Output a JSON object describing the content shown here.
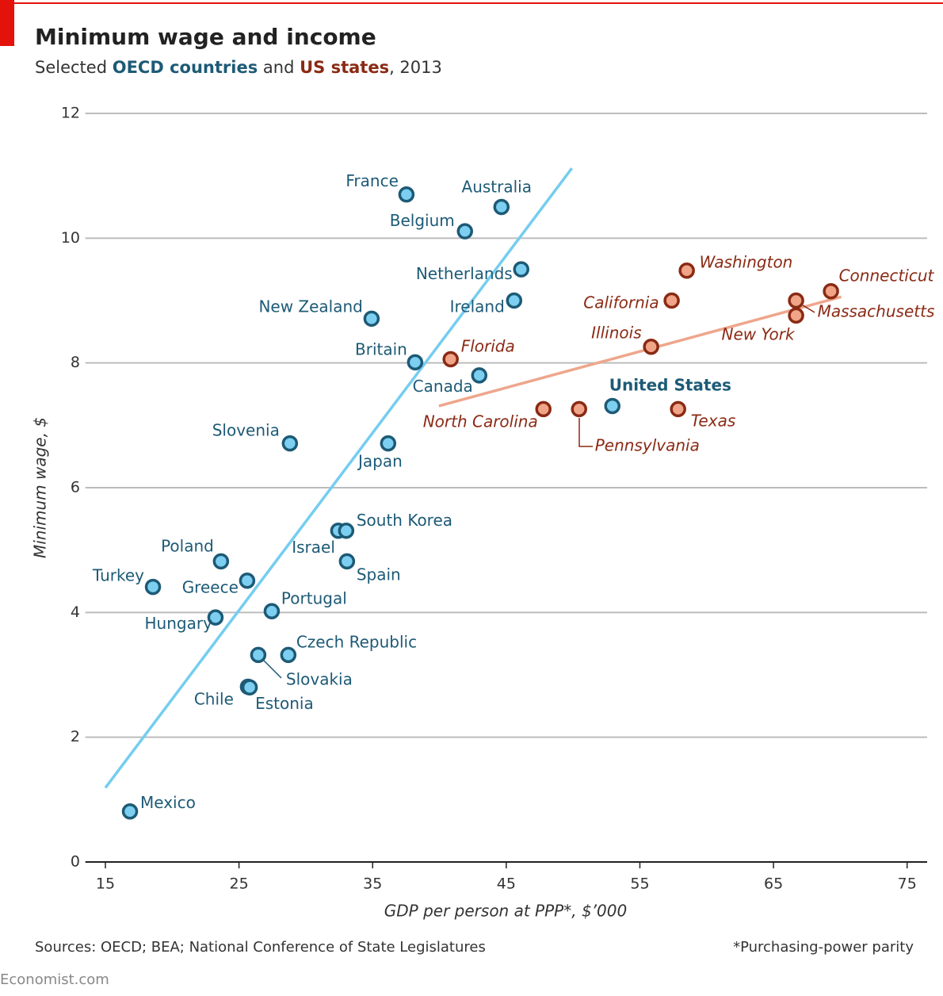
{
  "chart_data": {
    "type": "scatter",
    "title": "Minimum wage and income",
    "subtitle_parts": [
      "Selected",
      "and",
      ", 2013"
    ],
    "x_label": "GDP per person at PPP*, $’000",
    "y_label": "Minimum wage, $",
    "source": "Sources: OECD; BEA; National Conference of State Legislatures",
    "footnote": "*Purchasing-power parity",
    "brand": "Economist.com",
    "xlim": [
      13.5,
      76.5
    ],
    "ylim": [
      0,
      12
    ],
    "xticks": [
      15,
      25,
      35,
      45,
      55,
      65,
      75
    ],
    "yticks": [
      0,
      2,
      4,
      6,
      8,
      10,
      12
    ],
    "grid": true,
    "series": [
      {
        "name": "OECD countries",
        "color": "#7ccff0",
        "label_color": "#1d5a76",
        "trend_color": "#75cdf0",
        "labels": [
          "Mexico",
          "Turkey",
          "Poland",
          "Hungary",
          "Greece",
          "Chile",
          "Estonia",
          "Slovakia",
          "Portugal",
          "Czech Republic",
          "Slovenia",
          "Israel",
          "South Korea",
          "Spain",
          "New Zealand",
          "Japan",
          "France",
          "Britain",
          "Belgium",
          "Canada",
          "Australia",
          "Ireland",
          "Netherlands",
          "United States"
        ],
        "x": [
          16.84,
          18.56,
          23.65,
          23.24,
          25.61,
          25.67,
          25.8,
          26.44,
          27.45,
          28.69,
          28.81,
          32.43,
          33.02,
          33.08,
          34.92,
          36.16,
          37.53,
          38.18,
          41.91,
          42.98,
          44.64,
          45.59,
          46.12,
          52.94
        ],
        "values": [
          0.81,
          4.41,
          4.82,
          3.92,
          4.51,
          2.81,
          2.8,
          3.32,
          4.02,
          3.32,
          6.71,
          5.31,
          5.31,
          4.82,
          8.71,
          6.71,
          10.7,
          8.01,
          10.11,
          7.8,
          10.5,
          9.0,
          9.5,
          7.31
        ],
        "trend": {
          "x": [
            15,
            49.91
          ],
          "values": [
            1.19,
            11.12
          ]
        }
      },
      {
        "name": "US states",
        "color": "#f0a488",
        "label_color": "#8a2a14",
        "trend_color": "#eea68c",
        "labels": [
          "Florida",
          "North Carolina",
          "Pennsylvania",
          "Illinois",
          "California",
          "Texas",
          "Washington",
          "New York",
          "Massachusetts",
          "Connecticut"
        ],
        "x": [
          40.84,
          47.78,
          50.45,
          55.84,
          57.38,
          57.86,
          58.51,
          66.69,
          66.69,
          69.3
        ],
        "values": [
          8.06,
          7.26,
          7.26,
          8.26,
          9.0,
          7.26,
          9.48,
          8.76,
          9.0,
          9.15
        ],
        "trend": {
          "x": [
            39.96,
            70.07
          ],
          "values": [
            7.31,
            9.06
          ]
        }
      }
    ]
  }
}
